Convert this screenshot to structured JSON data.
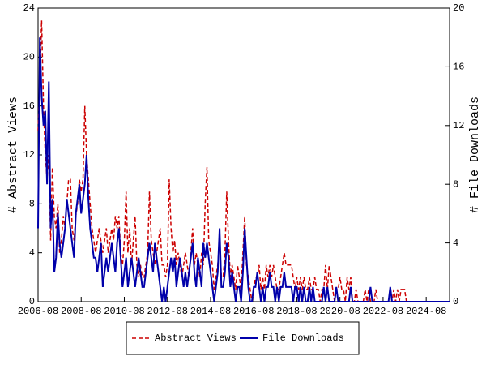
{
  "chart_data": {
    "type": "line",
    "x": [
      "2006-08",
      "2006-09",
      "2006-10",
      "2006-11",
      "2006-12",
      "2007-01",
      "2007-02",
      "2007-03",
      "2007-04",
      "2007-05",
      "2007-06",
      "2007-07",
      "2007-08",
      "2007-09",
      "2007-10",
      "2007-11",
      "2007-12",
      "2008-01",
      "2008-02",
      "2008-03",
      "2008-04",
      "2008-05",
      "2008-06",
      "2008-07",
      "2008-08",
      "2008-09",
      "2008-10",
      "2008-11",
      "2008-12",
      "2009-01",
      "2009-02",
      "2009-03",
      "2009-04",
      "2009-05",
      "2009-06",
      "2009-07",
      "2009-08",
      "2009-09",
      "2009-10",
      "2009-11",
      "2009-12",
      "2010-01",
      "2010-02",
      "2010-03",
      "2010-04",
      "2010-05",
      "2010-06",
      "2010-07",
      "2010-08",
      "2010-09",
      "2010-10",
      "2010-11",
      "2010-12",
      "2011-01",
      "2011-02",
      "2011-03",
      "2011-04",
      "2011-05",
      "2011-06",
      "2011-07",
      "2011-08",
      "2011-09",
      "2011-10",
      "2011-11",
      "2011-12",
      "2012-01",
      "2012-02",
      "2012-03",
      "2012-04",
      "2012-05",
      "2012-06",
      "2012-07",
      "2012-08",
      "2012-09",
      "2012-10",
      "2012-11",
      "2012-12",
      "2013-01",
      "2013-02",
      "2013-03",
      "2013-04",
      "2013-05",
      "2013-06",
      "2013-07",
      "2013-08",
      "2013-09",
      "2013-10",
      "2013-11",
      "2013-12",
      "2014-01",
      "2014-02",
      "2014-03",
      "2014-04",
      "2014-05",
      "2014-06",
      "2014-07",
      "2014-08",
      "2014-09",
      "2014-10",
      "2014-11",
      "2014-12",
      "2015-01",
      "2015-02",
      "2015-03",
      "2015-04",
      "2015-05",
      "2015-06",
      "2015-07",
      "2015-08",
      "2015-09",
      "2015-10",
      "2015-11",
      "2015-12",
      "2016-01",
      "2016-02",
      "2016-03",
      "2016-04",
      "2016-05",
      "2016-06",
      "2016-07",
      "2016-08",
      "2016-09",
      "2016-10",
      "2016-11",
      "2016-12",
      "2017-01",
      "2017-02",
      "2017-03",
      "2017-04",
      "2017-05",
      "2017-06",
      "2017-07",
      "2017-08",
      "2017-09",
      "2017-10",
      "2017-11",
      "2017-12",
      "2018-01",
      "2018-02",
      "2018-03",
      "2018-04",
      "2018-05",
      "2018-06",
      "2018-07",
      "2018-08",
      "2018-09",
      "2018-10",
      "2018-11",
      "2018-12",
      "2019-01",
      "2019-02",
      "2019-03",
      "2019-04",
      "2019-05",
      "2019-06",
      "2019-07",
      "2019-08",
      "2019-09",
      "2019-10",
      "2019-11",
      "2019-12",
      "2020-01",
      "2020-02",
      "2020-03",
      "2020-04",
      "2020-05",
      "2020-06",
      "2020-07",
      "2020-08",
      "2020-09",
      "2020-10",
      "2020-11",
      "2020-12",
      "2021-01",
      "2021-02",
      "2021-03",
      "2021-04",
      "2021-05",
      "2021-06",
      "2021-07",
      "2021-08",
      "2021-09",
      "2021-10",
      "2021-11",
      "2021-12",
      "2022-01",
      "2022-02",
      "2022-03",
      "2022-04",
      "2022-05",
      "2022-06",
      "2022-07",
      "2022-08",
      "2022-09",
      "2022-10",
      "2022-11",
      "2022-12",
      "2023-01",
      "2023-02",
      "2023-03",
      "2023-04",
      "2023-05",
      "2023-06",
      "2023-07",
      "2023-08",
      "2023-09",
      "2023-10",
      "2023-11",
      "2023-12",
      "2024-01",
      "2024-02",
      "2024-03",
      "2024-04",
      "2024-05",
      "2024-06",
      "2024-07",
      "2024-08",
      "2024-09",
      "2024-10",
      "2024-11",
      "2024-12",
      "2025-01",
      "2025-02",
      "2025-03",
      "2025-04",
      "2025-05",
      "2025-06",
      "2025-07",
      "2025-08",
      "2025-09"
    ],
    "series": [
      {
        "name": "Abstract Views",
        "color": "#cc0000",
        "axis": "y",
        "values": [
          14,
          18,
          23,
          16,
          12,
          10,
          12,
          5,
          11,
          7,
          6,
          8,
          4,
          5,
          7,
          6,
          8,
          10,
          10,
          6,
          5,
          7,
          8,
          10,
          9,
          10,
          16,
          12,
          10,
          8,
          6,
          5,
          4,
          5,
          6,
          5,
          4,
          5,
          6,
          4,
          5,
          6,
          5,
          7,
          6,
          7,
          4,
          3,
          5,
          9,
          4,
          6,
          3,
          5,
          7,
          3,
          2,
          3,
          2,
          2,
          3,
          4,
          9,
          5,
          4,
          3,
          4,
          5,
          6,
          3,
          3,
          2,
          3,
          10,
          6,
          4,
          5,
          3,
          4,
          3,
          2,
          3,
          4,
          3,
          2,
          4,
          6,
          3,
          4,
          3,
          2,
          4,
          3,
          8,
          11,
          5,
          4,
          3,
          1,
          2,
          3,
          5,
          2,
          2,
          4,
          9,
          5,
          2,
          3,
          2,
          1,
          3,
          2,
          1,
          4,
          7,
          3,
          2,
          1,
          0,
          1,
          2,
          2,
          3,
          1,
          2,
          1,
          3,
          2,
          3,
          2,
          3,
          2,
          1,
          1,
          2,
          3,
          4,
          3,
          3,
          3,
          3,
          2,
          1,
          2,
          1,
          2,
          1,
          2,
          1,
          1,
          2,
          1,
          1,
          2,
          1,
          1,
          0,
          1,
          1,
          3,
          1,
          3,
          2,
          1,
          0,
          1,
          1,
          2,
          1,
          1,
          0,
          2,
          1,
          2,
          0,
          0,
          1,
          0,
          0,
          0,
          0,
          1,
          0,
          1,
          0,
          0,
          0,
          1,
          0,
          0,
          0,
          0,
          0,
          0,
          0,
          1,
          0,
          1,
          0,
          1,
          0,
          1,
          1,
          1,
          0,
          0,
          0,
          0,
          0,
          0,
          0,
          0,
          0,
          0,
          0,
          0,
          0,
          0,
          0,
          0,
          0,
          0,
          0,
          0,
          0,
          0,
          0,
          0,
          0
        ]
      },
      {
        "name": "File Downloads",
        "color": "#0000aa",
        "axis": "y2",
        "values": [
          5,
          18,
          14,
          12,
          13,
          8,
          15,
          5,
          7,
          2,
          3,
          6,
          4,
          3,
          4,
          5,
          7,
          6,
          5,
          4,
          3,
          6,
          7,
          8,
          6,
          7,
          8,
          10,
          7,
          5,
          4,
          3,
          3,
          2,
          3,
          4,
          1,
          2,
          3,
          2,
          3,
          4,
          3,
          2,
          4,
          5,
          3,
          1,
          2,
          3,
          1,
          2,
          3,
          2,
          1,
          2,
          3,
          2,
          1,
          1,
          2,
          3,
          4,
          3,
          2,
          4,
          3,
          2,
          1,
          0,
          1,
          0,
          1,
          2,
          3,
          2,
          3,
          1,
          2,
          3,
          2,
          1,
          2,
          1,
          2,
          3,
          4,
          2,
          1,
          3,
          2,
          1,
          4,
          3,
          4,
          3,
          2,
          1,
          0,
          1,
          2,
          5,
          1,
          1,
          2,
          4,
          3,
          1,
          2,
          1,
          0,
          1,
          1,
          0,
          2,
          5,
          3,
          1,
          0,
          0,
          1,
          1,
          2,
          1,
          0,
          1,
          0,
          1,
          1,
          2,
          1,
          1,
          0,
          1,
          0,
          1,
          1,
          2,
          1,
          1,
          1,
          1,
          0,
          1,
          1,
          0,
          1,
          0,
          1,
          0,
          0,
          1,
          0,
          1,
          0,
          0,
          0,
          0,
          0,
          1,
          0,
          1,
          0,
          0,
          0,
          0,
          1,
          0,
          0,
          0,
          0,
          0,
          0,
          0,
          1,
          0,
          0,
          0,
          0,
          0,
          0,
          0,
          0,
          0,
          0,
          1,
          0,
          0,
          0,
          0,
          0,
          0,
          0,
          0,
          0,
          0,
          1,
          0,
          0,
          0,
          0,
          0,
          0,
          0,
          0,
          0,
          0,
          0,
          0,
          0,
          0,
          0,
          0,
          0,
          0,
          0,
          0,
          0,
          0,
          0,
          0,
          0,
          0,
          0,
          0,
          0,
          0,
          0,
          0,
          0
        ]
      }
    ],
    "ylabel": "# Abstract Views",
    "y2label": "# File Downloads",
    "xlim": [
      "2006-08",
      "2025-09"
    ],
    "xticks": [
      "2006-08",
      "2008-08",
      "2010-08",
      "2012-08",
      "2014-08",
      "2016-08",
      "2018-08",
      "2020-08",
      "2022-08",
      "2024-08"
    ],
    "ylim": [
      0,
      24
    ],
    "yticks": [
      0,
      4,
      8,
      12,
      16,
      20,
      24
    ],
    "y2lim": [
      0,
      20
    ],
    "y2ticks": [
      0,
      4,
      8,
      12,
      16,
      20
    ],
    "legend": "bottom"
  }
}
